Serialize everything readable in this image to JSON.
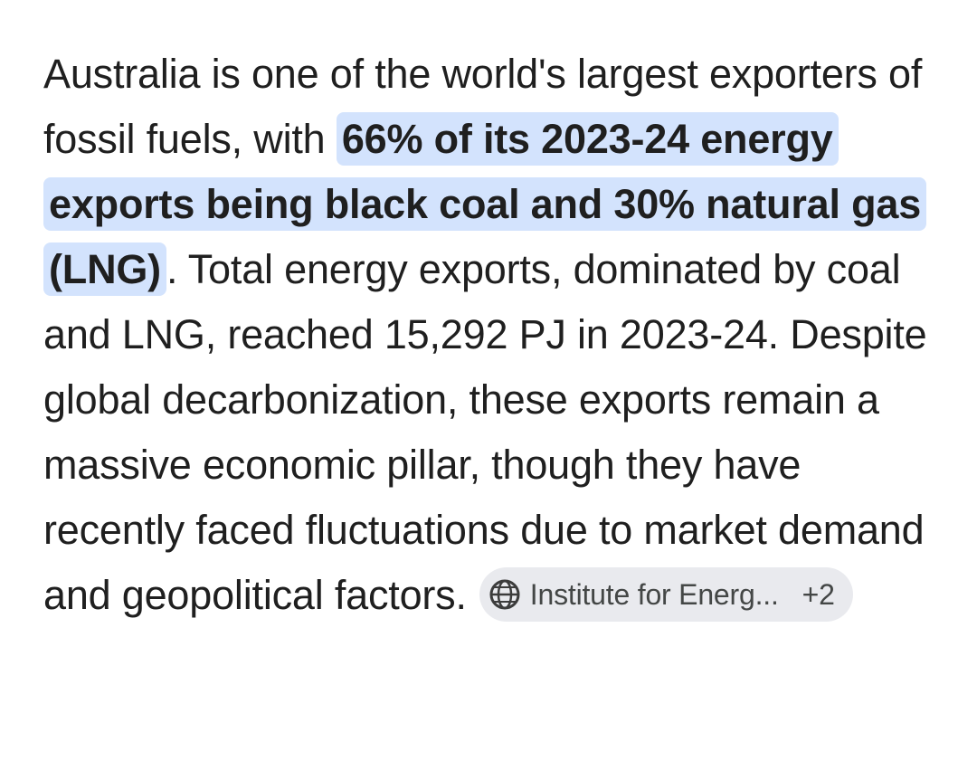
{
  "paragraph": {
    "text_before": "Australia is one of the world's largest exporters of fossil fuels, with ",
    "highlight": "66% of its 2023-24 energy exports being black coal and 30% natural gas (LNG)",
    "text_after": ". Total energy exports, dominated by coal and LNG, reached 15,292 PJ in 2023-24. Despite global decarbonization, these exports remain a massive economic pillar, though they have recently faced fluctuations due to market demand and geopolitical factors.",
    "citation": {
      "source": "Institute for Energ...",
      "more": "+2"
    }
  }
}
